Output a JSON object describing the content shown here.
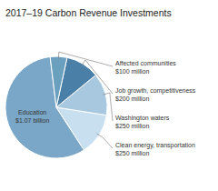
{
  "chart_data": {
    "type": "pie",
    "title": "2017–19 Carbon Revenue Investments",
    "categories": [
      "Education",
      "Clean energy, transportation",
      "Washington waters",
      "Job growth, competitiveness",
      "Affected communities"
    ],
    "values": [
      1070,
      250,
      250,
      200,
      100
    ],
    "value_labels": [
      "$1.07 billion",
      "$250 million",
      "$250 million",
      "$200 million",
      "$100 million"
    ],
    "colors": [
      "#7aa7c7",
      "#c8dff0",
      "#a8c8e0",
      "#4a7fa8",
      "#6a9fbe"
    ],
    "data_labels": true
  }
}
